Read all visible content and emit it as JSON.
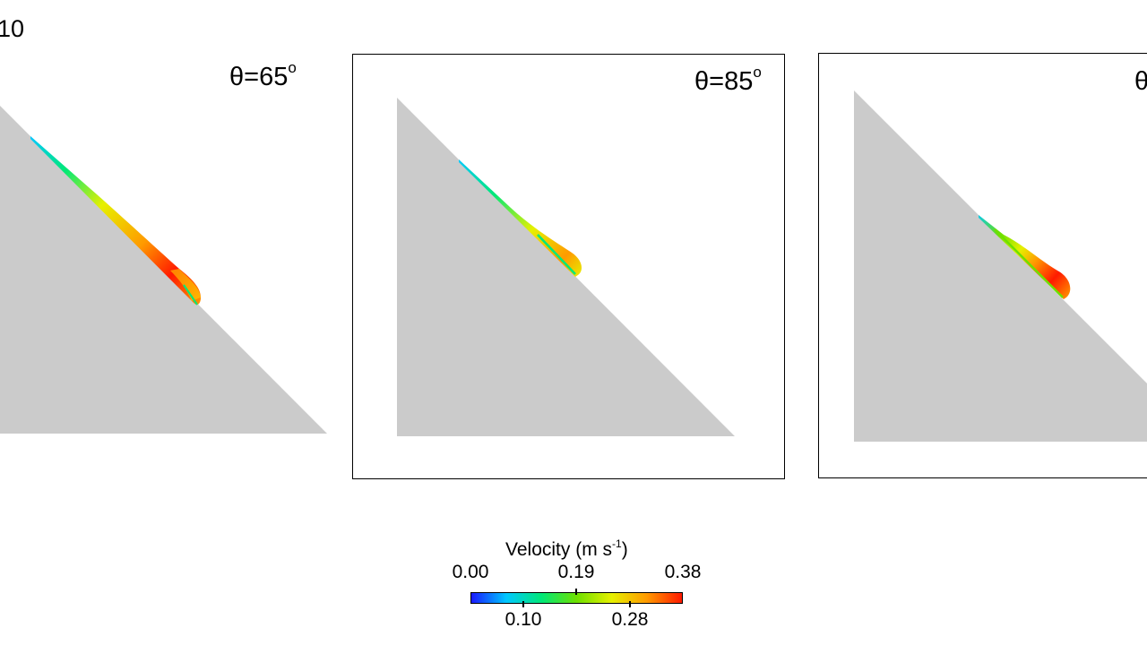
{
  "partial_label": "10",
  "panels": [
    {
      "angle_label": "θ=65",
      "superscript": "o"
    },
    {
      "angle_label": "θ=85",
      "superscript": "o"
    },
    {
      "angle_label": "θ",
      "superscript": ""
    }
  ],
  "colorbar": {
    "title": "Velocity (m s",
    "title_sup": "-1",
    "title_end": ")",
    "top_ticks": [
      "0.00",
      "0.19",
      "0.38"
    ],
    "bottom_ticks": [
      "0.10",
      "0.28"
    ],
    "colors": [
      "#1a1aff",
      "#00c8ff",
      "#00e878",
      "#6ee000",
      "#e6f000",
      "#ff9a00",
      "#ff1a00"
    ]
  },
  "colors": {
    "solid": "#cbcbcb",
    "frame": "#000000"
  }
}
